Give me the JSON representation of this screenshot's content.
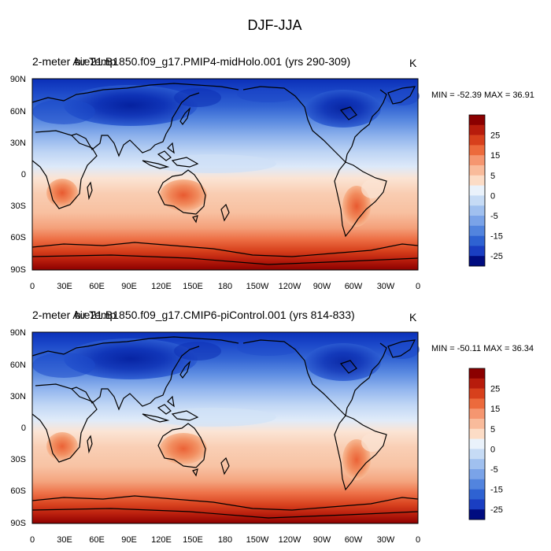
{
  "figure": {
    "title": "DJF-JJA"
  },
  "panels": [
    {
      "variable": "2-meter Air Temp",
      "case": "b.e21.B1850.f09_g17.PMIP4-midHolo.001 (yrs 290-309)",
      "units": "K",
      "stats": "MIN = -52.39 MAX =  36.91"
    },
    {
      "variable": "2-meter Air Temp",
      "case": "b.e21.B1850.f09_g17.CMIP6-piControl.001 (yrs 814-833)",
      "units": "K",
      "stats": "MIN = -50.11 MAX =  36.34"
    }
  ],
  "axes": {
    "lat_ticks": [
      "90N",
      "60N",
      "30N",
      "0",
      "30S",
      "60S",
      "90S"
    ],
    "lon_ticks": [
      "0",
      "30E",
      "60E",
      "90E",
      "120E",
      "150E",
      "180",
      "150W",
      "120W",
      "90W",
      "60W",
      "30W",
      "0"
    ]
  },
  "colorbar": {
    "labels": [
      "25",
      "15",
      "5",
      "0",
      "-5",
      "-15",
      "-25"
    ],
    "colors": [
      "#8b0000",
      "#b71c0c",
      "#d7401c",
      "#ec6a3c",
      "#f59670",
      "#f9bb9b",
      "#fcdcc6",
      "#eaf2fb",
      "#c6dbf5",
      "#a0c0ef",
      "#7aa3e8",
      "#5284de",
      "#2e62d2",
      "#1a3ec2",
      "#000c80"
    ]
  }
}
